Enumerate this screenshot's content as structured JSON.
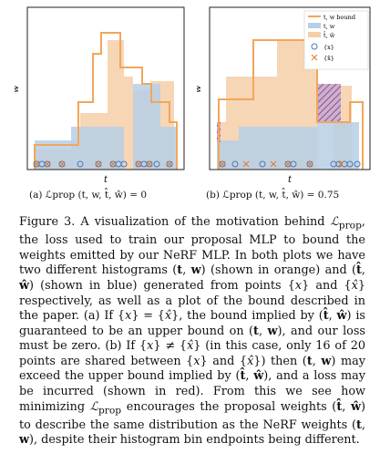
{
  "figure": {
    "panels": [
      {
        "id": "a",
        "caption": "(a) ℒprop (t, w, t̂, ŵ) = 0",
        "ylabel": "w",
        "xlabel": "t"
      },
      {
        "id": "b",
        "caption": "(b) ℒprop (t, w, t̂, ŵ) = 0.75",
        "ylabel": "w",
        "xlabel": "t"
      }
    ],
    "legend": [
      {
        "label": "t, w bound",
        "kind": "line",
        "color": "#f2a65a"
      },
      {
        "label": "t, w",
        "kind": "patch",
        "color": "#b7cfe6"
      },
      {
        "label": "t̂, ŵ",
        "kind": "patch",
        "color": "#f6cfa8"
      },
      {
        "label": "{x}",
        "kind": "circle",
        "color": "#4a78b5"
      },
      {
        "label": "{x̂}",
        "kind": "cross",
        "color": "#e07a2a"
      }
    ],
    "colors": {
      "bound": "#f2a65a",
      "blue_fill": "#b7cfe6",
      "orange_fill": "#f6cfa8",
      "loss_hatch": "#9b4b8a",
      "points": "#4a78b5"
    }
  },
  "chart_data": [
    {
      "type": "area",
      "title": "",
      "xlabel": "t",
      "ylabel": "w",
      "series": [
        {
          "name": "t, w bound",
          "x": [
            0,
            0.07,
            0.38,
            0.42,
            0.46,
            0.55,
            0.64,
            0.72,
            0.8,
            1.0
          ],
          "values": [
            0.1,
            0.1,
            0.55,
            0.55,
            0.78,
            0.78,
            0.55,
            0.55,
            0.48,
            0.2
          ]
        },
        {
          "name": "t, w",
          "x": [
            0.08,
            0.2,
            0.3,
            0.45,
            0.55,
            0.7,
            0.78,
            0.88,
            0.95
          ],
          "values": [
            0.15,
            0.28,
            0.28,
            0.28,
            0.28,
            0.6,
            0.2,
            0.28,
            0.12
          ]
        },
        {
          "name": "t̂, ŵ",
          "x": [
            0.08,
            0.2,
            0.3,
            0.45,
            0.55,
            0.7,
            0.78,
            0.88,
            0.95
          ],
          "values": [
            0.1,
            0.15,
            0.55,
            0.55,
            0.78,
            0.3,
            0.55,
            0.2,
            0.1
          ]
        }
      ]
    },
    {
      "type": "area",
      "title": "",
      "xlabel": "t",
      "ylabel": "w",
      "series": [
        {
          "name": "t, w bound",
          "x": [
            0,
            0.07,
            0.2,
            0.38,
            0.5,
            0.62,
            0.9,
            1.0
          ],
          "values": [
            0.1,
            0.55,
            0.55,
            0.78,
            0.78,
            0.48,
            0.48,
            0.15
          ]
        },
        {
          "name": "t, w",
          "x": [
            0.05,
            0.15,
            0.3,
            0.45,
            0.55,
            0.7,
            0.8,
            0.9
          ],
          "values": [
            0.18,
            0.28,
            0.28,
            0.28,
            0.3,
            0.6,
            0.3,
            0.2
          ]
        },
        {
          "name": "t̂, ŵ",
          "x": [
            0.05,
            0.15,
            0.3,
            0.45,
            0.55,
            0.7,
            0.8,
            0.9
          ],
          "values": [
            0.1,
            0.55,
            0.55,
            0.78,
            0.78,
            0.28,
            0.5,
            0.1
          ]
        }
      ]
    }
  ]
}
